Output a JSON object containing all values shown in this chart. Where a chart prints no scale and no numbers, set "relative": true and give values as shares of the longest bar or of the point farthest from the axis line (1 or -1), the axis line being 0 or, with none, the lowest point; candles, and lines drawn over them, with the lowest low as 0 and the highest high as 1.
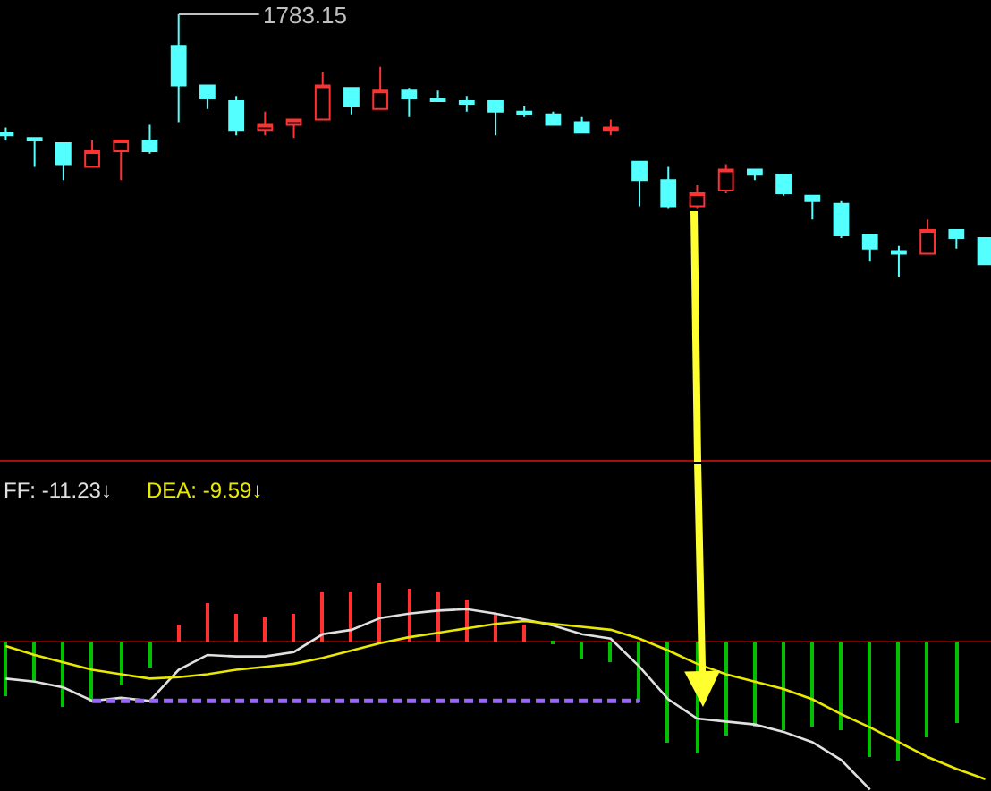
{
  "chart_data": [
    {
      "type": "candlestick",
      "relative": true,
      "categories": [
        null,
        null,
        null,
        null,
        null,
        null,
        null,
        null,
        null,
        null,
        null,
        null,
        null,
        null,
        null,
        null,
        null,
        null,
        null,
        null,
        null,
        null,
        null,
        null,
        null,
        null,
        null,
        null,
        null,
        null,
        null,
        null,
        null,
        null,
        null
      ],
      "ohlc": [
        [
          0.55,
          0.57,
          0.52,
          0.54
        ],
        [
          0.53,
          0.53,
          0.42,
          0.52
        ],
        [
          0.51,
          0.51,
          0.37,
          0.43
        ],
        [
          0.42,
          0.52,
          0.42,
          0.48
        ],
        [
          0.48,
          0.52,
          0.37,
          0.52
        ],
        [
          0.52,
          0.58,
          0.47,
          0.48
        ],
        [
          0.88,
          1.0,
          0.59,
          0.73
        ],
        [
          0.73,
          0.73,
          0.64,
          0.68
        ],
        [
          0.67,
          0.69,
          0.54,
          0.56
        ],
        [
          0.56,
          0.63,
          0.54,
          0.58
        ],
        [
          0.58,
          0.6,
          0.53,
          0.6
        ],
        [
          0.6,
          0.78,
          0.6,
          0.73
        ],
        [
          0.72,
          0.72,
          0.62,
          0.65
        ],
        [
          0.64,
          0.8,
          0.64,
          0.71
        ],
        [
          0.71,
          0.72,
          0.61,
          0.68
        ],
        [
          0.68,
          0.71,
          0.67,
          0.67
        ],
        [
          0.67,
          0.69,
          0.63,
          0.66
        ],
        [
          0.67,
          0.67,
          0.54,
          0.63
        ],
        [
          0.63,
          0.65,
          0.61,
          0.62
        ],
        [
          0.62,
          0.63,
          0.58,
          0.58
        ],
        [
          0.59,
          0.61,
          0.55,
          0.55
        ],
        [
          0.56,
          0.6,
          0.54,
          0.57
        ],
        [
          0.44,
          0.44,
          0.27,
          0.37
        ],
        [
          0.37,
          0.42,
          0.26,
          0.27
        ],
        [
          0.27,
          0.35,
          0.26,
          0.32
        ],
        [
          0.33,
          0.43,
          0.32,
          0.41
        ],
        [
          0.41,
          0.41,
          0.37,
          0.39
        ],
        [
          0.39,
          0.39,
          0.31,
          0.32
        ],
        [
          0.31,
          0.31,
          0.22,
          0.29
        ],
        [
          0.28,
          0.29,
          0.15,
          0.16
        ],
        [
          0.16,
          0.16,
          0.06,
          0.11
        ],
        [
          0.1,
          0.12,
          0.0,
          0.09
        ],
        [
          0.09,
          0.22,
          0.09,
          0.18
        ],
        [
          0.18,
          0.18,
          0.11,
          0.15
        ],
        [
          0.15,
          0.15,
          0.05,
          0.05
        ]
      ],
      "colors": [
        "#54ffff",
        "#54ffff",
        "#54ffff",
        "#ff3232",
        "#ff3232",
        "#54ffff",
        "#54ffff",
        "#54ffff",
        "#54ffff",
        "#ff3232",
        "#ff3232",
        "#ff3232",
        "#54ffff",
        "#ff3232",
        "#54ffff",
        "#54ffff",
        "#54ffff",
        "#54ffff",
        "#54ffff",
        "#54ffff",
        "#54ffff",
        "#ff3232",
        "#54ffff",
        "#54ffff",
        "#ff3232",
        "#ff3232",
        "#54ffff",
        "#54ffff",
        "#54ffff",
        "#54ffff",
        "#54ffff",
        "#54ffff",
        "#ff3232",
        "#54ffff",
        "#54ffff"
      ],
      "annotations": [
        "1783.15"
      ]
    },
    {
      "type": "bar",
      "relative": true,
      "categories": [
        null,
        null,
        null,
        null,
        null,
        null,
        null,
        null,
        null,
        null,
        null,
        null,
        null,
        null,
        null,
        null,
        null,
        null,
        null,
        null,
        null,
        null,
        null,
        null,
        null,
        null,
        null,
        null,
        null,
        null,
        null,
        null,
        null,
        null,
        null
      ],
      "series": [
        {
          "type": "bar",
          "values": [
            -0.37,
            -0.27,
            -0.44,
            -0.4,
            -0.29,
            -0.17,
            0.11,
            0.26,
            0.19,
            0.17,
            0.19,
            0.33,
            0.33,
            0.4,
            0.36,
            0.33,
            0.28,
            0.19,
            0.11,
            -0.01,
            -0.11,
            -0.14,
            -0.4,
            -0.68,
            -0.75,
            -0.63,
            -0.57,
            -0.6,
            -0.57,
            -0.6,
            -0.78,
            -0.81,
            -0.65,
            -0.55,
            null
          ],
          "colors": [
            "#00c000",
            "#00c000",
            "#00c000",
            "#00c000",
            "#00c000",
            "#00c000",
            "#ff3232",
            "#ff3232",
            "#ff3232",
            "#ff3232",
            "#ff3232",
            "#ff3232",
            "#ff3232",
            "#ff3232",
            "#ff3232",
            "#ff3232",
            "#ff3232",
            "#ff3232",
            "#ff3232",
            "#00c000",
            "#00c000",
            "#00c000",
            "#00c000",
            "#00c000",
            "#00c000",
            "#00c000",
            "#00c000",
            "#00c000",
            "#00c000",
            "#00c000",
            "#00c000",
            "#00c000",
            "#00c000",
            "#00c000",
            "#00c000"
          ]
        },
        {
          "type": "line",
          "color": "#e0e0e0",
          "values": [
            -0.25,
            -0.27,
            -0.31,
            -0.4,
            -0.38,
            -0.4,
            -0.19,
            -0.09,
            -0.1,
            -0.1,
            -0.07,
            0.05,
            0.08,
            0.16,
            0.19,
            0.21,
            0.22,
            0.19,
            0.15,
            0.11,
            0.05,
            0.02,
            -0.17,
            -0.39,
            -0.52,
            -0.54,
            -0.56,
            -0.61,
            -0.68,
            -0.8,
            -1.0,
            null,
            null,
            null,
            null
          ]
        },
        {
          "type": "line",
          "color": "#e8e800",
          "values": [
            -0.03,
            -0.09,
            -0.14,
            -0.19,
            -0.22,
            -0.25,
            -0.24,
            -0.22,
            -0.19,
            -0.17,
            -0.15,
            -0.11,
            -0.06,
            -0.01,
            0.03,
            0.06,
            0.09,
            0.12,
            0.14,
            0.12,
            0.1,
            0.08,
            0.02,
            -0.06,
            -0.15,
            -0.22,
            -0.27,
            -0.32,
            -0.39,
            -0.49,
            -0.58,
            -0.68,
            -0.78,
            -0.86,
            -0.93
          ]
        },
        {
          "type": "line",
          "color": "#9966ff",
          "line_style": "dashed",
          "values": [
            null,
            null,
            null,
            -0.4,
            -0.4,
            -0.4,
            -0.4,
            -0.4,
            -0.4,
            -0.4,
            -0.4,
            -0.4,
            -0.4,
            -0.4,
            -0.4,
            -0.4,
            -0.4,
            -0.4,
            -0.4,
            -0.4,
            -0.4,
            -0.4,
            -0.4,
            null,
            null,
            null,
            null,
            null,
            null,
            null,
            null,
            null,
            null,
            null,
            null
          ]
        }
      ],
      "ref_lines": [
        {
          "axis": "y",
          "value": 0,
          "color": "#800000"
        }
      ],
      "annotations": [
        "FF: -11.23↓",
        "DEA: -9.59↓"
      ]
    }
  ]
}
